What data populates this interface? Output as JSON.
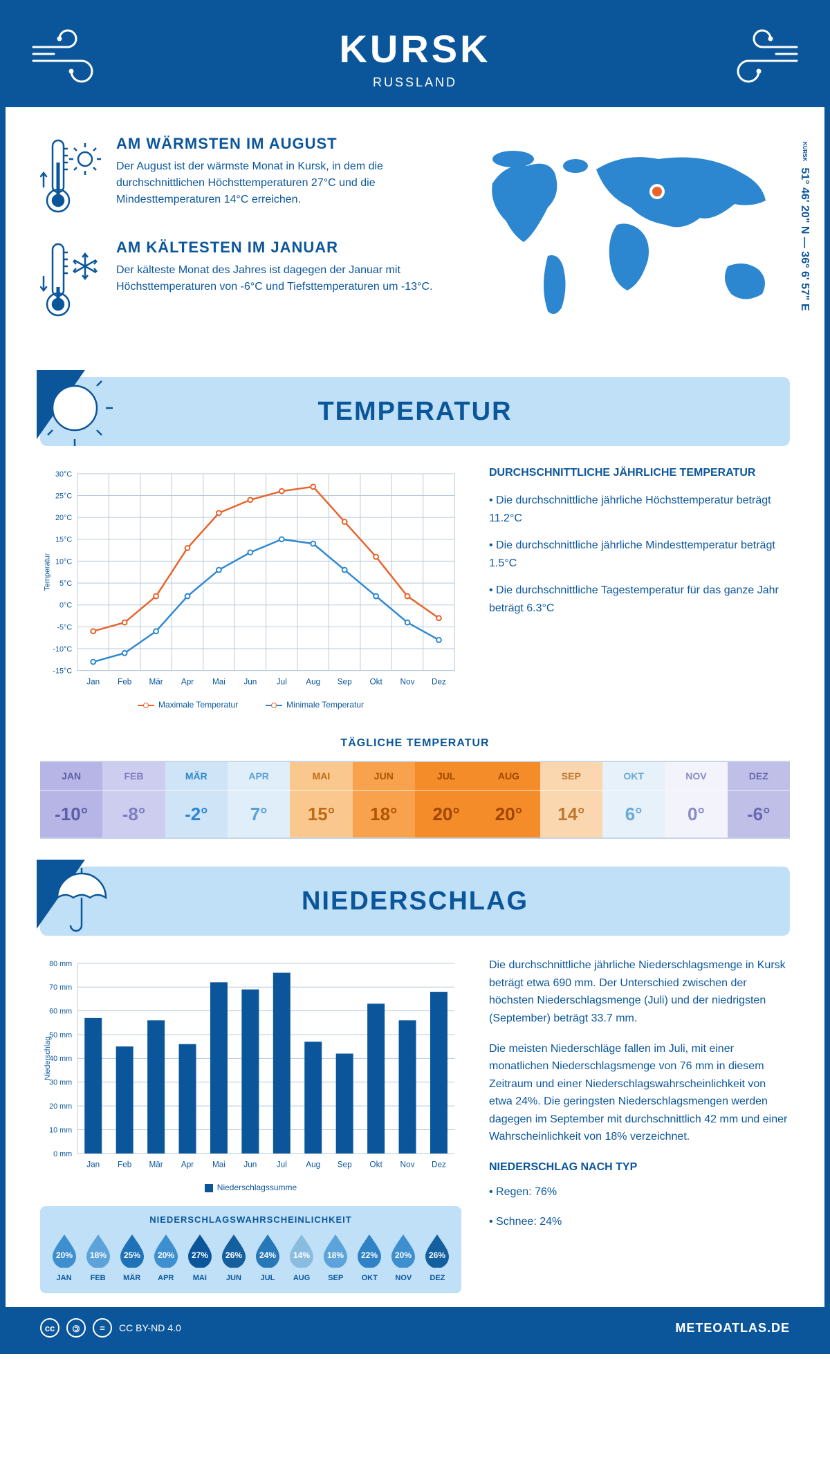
{
  "header": {
    "title": "KURSK",
    "subtitle": "RUSSLAND"
  },
  "coords": {
    "text": "51° 46' 20\" N — 36° 6' 57\" E",
    "label": "KURSK"
  },
  "warmest": {
    "title": "AM WÄRMSTEN IM AUGUST",
    "text": "Der August ist der wärmste Monat in Kursk, in dem die durchschnittlichen Höchsttemperaturen 27°C und die Mindesttemperaturen 14°C erreichen."
  },
  "coldest": {
    "title": "AM KÄLTESTEN IM JANUAR",
    "text": "Der kälteste Monat des Jahres ist dagegen der Januar mit Höchsttemperaturen von -6°C und Tiefsttemperaturen um -13°C."
  },
  "section_temp": "TEMPERATUR",
  "section_precip": "NIEDERSCHLAG",
  "temp_chart": {
    "type": "line",
    "months": [
      "Jan",
      "Feb",
      "Mär",
      "Apr",
      "Mai",
      "Jun",
      "Jul",
      "Aug",
      "Sep",
      "Okt",
      "Nov",
      "Dez"
    ],
    "max": [
      -6,
      -4,
      2,
      13,
      21,
      24,
      26,
      27,
      19,
      11,
      2,
      -3
    ],
    "min": [
      -13,
      -11,
      -6,
      2,
      8,
      12,
      15,
      14,
      8,
      2,
      -4,
      -8
    ],
    "max_color": "#e8632a",
    "min_color": "#2d87d0",
    "grid_color": "#b8c9db",
    "ylim": [
      -15,
      30
    ],
    "ytick_step": 5,
    "ylabel": "Temperatur",
    "legend_max": "Maximale Temperatur",
    "legend_min": "Minimale Temperatur"
  },
  "temp_text": {
    "heading": "DURCHSCHNITTLICHE JÄHRLICHE TEMPERATUR",
    "b1": "• Die durchschnittliche jährliche Höchsttemperatur beträgt 11.2°C",
    "b2": "• Die durchschnittliche jährliche Mindesttemperatur beträgt 1.5°C",
    "b3": "• Die durchschnittliche Tagestemperatur für das ganze Jahr beträgt 6.3°C"
  },
  "daily_temp_title": "TÄGLICHE TEMPERATUR",
  "daily_temp": {
    "months": [
      "JAN",
      "FEB",
      "MÄR",
      "APR",
      "MAI",
      "JUN",
      "JUL",
      "AUG",
      "SEP",
      "OKT",
      "NOV",
      "DEZ"
    ],
    "values": [
      "-10°",
      "-8°",
      "-2°",
      "7°",
      "15°",
      "18°",
      "20°",
      "20°",
      "14°",
      "6°",
      "0°",
      "-6°"
    ],
    "colors": [
      "#b6b5e6",
      "#cdcdef",
      "#cfe4f6",
      "#e0eefa",
      "#fac88e",
      "#f8a24e",
      "#f58c2a",
      "#f58c2a",
      "#fad7af",
      "#e6f1fa",
      "#f3f3fb",
      "#c0bfe8"
    ],
    "text_colors": [
      "#5e5ea8",
      "#7e7ec0",
      "#2d87d0",
      "#5aa0d8",
      "#c06a12",
      "#b05500",
      "#a04600",
      "#a04600",
      "#c07830",
      "#6aaad8",
      "#8a8ac8",
      "#6a6ab0"
    ]
  },
  "precip_chart": {
    "type": "bar",
    "months": [
      "Jan",
      "Feb",
      "Mär",
      "Apr",
      "Mai",
      "Jun",
      "Jul",
      "Aug",
      "Sep",
      "Okt",
      "Nov",
      "Dez"
    ],
    "values": [
      57,
      45,
      56,
      46,
      72,
      69,
      76,
      47,
      42,
      63,
      56,
      68
    ],
    "bar_color": "#0b569b",
    "grid_color": "#b8c9db",
    "ylim": [
      0,
      80
    ],
    "ytick_step": 10,
    "ylabel": "Niederschlag",
    "legend": "Niederschlagssumme"
  },
  "precip_text": {
    "p1": "Die durchschnittliche jährliche Niederschlagsmenge in Kursk beträgt etwa 690 mm. Der Unterschied zwischen der höchsten Niederschlagsmenge (Juli) und der niedrigsten (September) beträgt 33.7 mm.",
    "p2": "Die meisten Niederschläge fallen im Juli, mit einer monatlichen Niederschlagsmenge von 76 mm in diesem Zeitraum und einer Niederschlagswahrscheinlichkeit von etwa 24%. Die geringsten Niederschlagsmengen werden dagegen im September mit durchschnittlich 42 mm und einer Wahrscheinlichkeit von 18% verzeichnet.",
    "type_heading": "NIEDERSCHLAG NACH TYP",
    "type1": "• Regen: 76%",
    "type2": "• Schnee: 24%"
  },
  "prob": {
    "title": "NIEDERSCHLAGSWAHRSCHEINLICHKEIT",
    "months": [
      "JAN",
      "FEB",
      "MÄR",
      "APR",
      "MAI",
      "JUN",
      "JUL",
      "AUG",
      "SEP",
      "OKT",
      "NOV",
      "DEZ"
    ],
    "values": [
      "20%",
      "18%",
      "25%",
      "20%",
      "27%",
      "26%",
      "24%",
      "14%",
      "18%",
      "22%",
      "20%",
      "26%"
    ],
    "colors": [
      "#3d8fd0",
      "#5ba3da",
      "#1e72b8",
      "#3d8fd0",
      "#0b569b",
      "#145f9e",
      "#2678b8",
      "#8abce0",
      "#5ba3da",
      "#2e82c5",
      "#3d8fd0",
      "#145f9e"
    ]
  },
  "footer": {
    "license": "CC BY-ND 4.0",
    "site": "METEOATLAS.DE"
  }
}
